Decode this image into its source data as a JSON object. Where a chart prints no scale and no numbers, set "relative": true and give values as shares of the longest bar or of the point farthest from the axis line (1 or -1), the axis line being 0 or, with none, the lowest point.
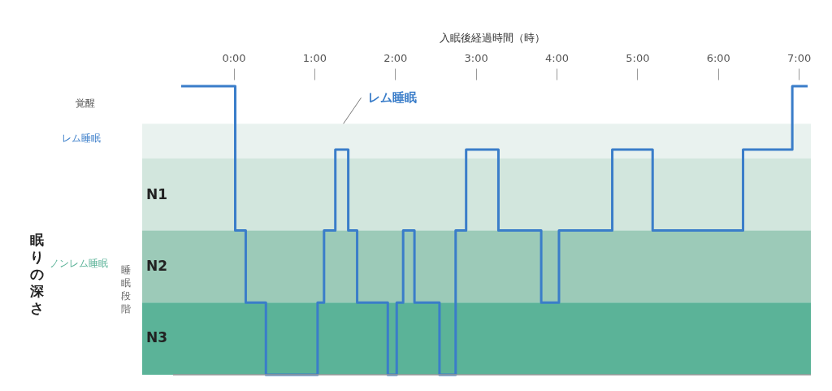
{
  "chart_data": {
    "type": "line",
    "relative": true,
    "xlabel": "入眠後経過時間（時）",
    "x": [
      -0.65,
      0.02,
      0.02,
      0.15,
      0.15,
      0.4,
      0.4,
      1.04,
      1.04,
      1.12,
      1.12,
      1.26,
      1.26,
      1.42,
      1.42,
      1.53,
      1.53,
      1.91,
      1.91,
      2.02,
      2.02,
      2.1,
      2.1,
      2.24,
      2.24,
      2.55,
      2.55,
      2.75,
      2.75,
      2.88,
      2.88,
      3.28,
      3.28,
      3.81,
      3.81,
      4.03,
      4.03,
      4.69,
      4.69,
      5.19,
      5.19,
      6.31,
      6.31,
      6.92,
      6.92,
      7.11
    ],
    "series": [
      {
        "color": "#3a7dc9",
        "values": [
          1,
          1,
          0.5,
          0.5,
          0.25,
          0.25,
          0,
          0,
          0.25,
          0.25,
          0.5,
          0.5,
          0.78,
          0.78,
          0.5,
          0.5,
          0.25,
          0.25,
          0,
          0,
          0.25,
          0.25,
          0.5,
          0.5,
          0.25,
          0.25,
          0,
          0,
          0.5,
          0.5,
          0.78,
          0.78,
          0.5,
          0.5,
          0.25,
          0.25,
          0.5,
          0.5,
          0.78,
          0.78,
          0.5,
          0.5,
          0.78,
          0.78,
          1,
          1
        ]
      }
    ],
    "xlim": [
      -0.75,
      7.15
    ],
    "xticks": [
      {
        "value": 0,
        "label": "0:00"
      },
      {
        "value": 1,
        "label": "1:00"
      },
      {
        "value": 2,
        "label": "2:00"
      },
      {
        "value": 3,
        "label": "3:00"
      },
      {
        "value": 4,
        "label": "4:00"
      },
      {
        "value": 5,
        "label": "5:00"
      },
      {
        "value": 6,
        "label": "6:00"
      },
      {
        "value": 7,
        "label": "7:00"
      }
    ],
    "bands": [
      {
        "axis": "y",
        "from": 0.75,
        "to": 0.87,
        "color": "#e9f2ef"
      },
      {
        "axis": "y",
        "from": 0.5,
        "to": 0.75,
        "color": "#d2e6dd"
      },
      {
        "axis": "y",
        "from": 0.25,
        "to": 0.5,
        "color": "#9ccab8"
      },
      {
        "axis": "y",
        "from": 0,
        "to": 0.25,
        "color": "#5bb398"
      }
    ],
    "annotations": [
      "覚醒",
      "レム睡眠",
      "N1",
      "N2",
      "N3",
      "ノンレム睡眠",
      "睡眠段階",
      "眠りの深さ",
      {
        "text": "レム睡眠",
        "x": 1.36,
        "y": 0.87
      }
    ],
    "grid": false
  }
}
